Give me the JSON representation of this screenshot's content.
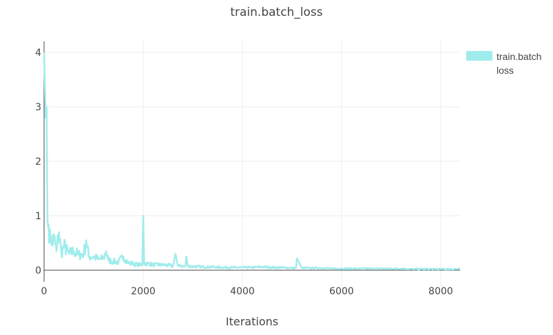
{
  "chart_data": {
    "type": "line",
    "title": "train.batch_loss",
    "xlabel": "Iterations",
    "ylabel": "",
    "xlim": [
      0,
      8390
    ],
    "ylim": [
      -0.15,
      4.2
    ],
    "x_ticks": [
      0,
      2000,
      4000,
      6000,
      8000
    ],
    "x_tick_labels": [
      "0",
      "2000",
      "4000",
      "6000",
      "8000"
    ],
    "y_ticks": [
      0,
      1,
      2,
      3,
      4
    ],
    "y_tick_labels": [
      "0",
      "1",
      "2",
      "3",
      "4"
    ],
    "grid": true,
    "legend_position": "right-top",
    "series": [
      {
        "name": "train.batch_loss",
        "color": "#a0ecec",
        "x": [
          0,
          10,
          30,
          50,
          60,
          80,
          100,
          120,
          150,
          200,
          250,
          300,
          350,
          400,
          500,
          600,
          700,
          800,
          850,
          900,
          1000,
          1100,
          1200,
          1250,
          1300,
          1400,
          1500,
          1600,
          1700,
          1800,
          1900,
          1980,
          2000,
          2020,
          2100,
          2200,
          2400,
          2600,
          2650,
          2700,
          2850,
          2870,
          2900,
          3000,
          3200,
          3400,
          3600,
          3800,
          4000,
          4200,
          4400,
          4600,
          4800,
          5000,
          5080,
          5100,
          5200,
          5400,
          5600,
          5800,
          6000,
          6200,
          6400,
          6600,
          6800,
          7000,
          7200,
          7400,
          7600,
          7800,
          8000,
          8200,
          8390
        ],
        "y": [
          4.0,
          3.7,
          2.8,
          3.0,
          2.0,
          0.8,
          0.5,
          0.75,
          0.45,
          0.6,
          0.35,
          0.7,
          0.3,
          0.45,
          0.3,
          0.35,
          0.28,
          0.3,
          0.55,
          0.25,
          0.25,
          0.2,
          0.22,
          0.35,
          0.18,
          0.16,
          0.15,
          0.25,
          0.13,
          0.12,
          0.1,
          0.1,
          1.0,
          0.12,
          0.12,
          0.1,
          0.1,
          0.08,
          0.3,
          0.08,
          0.07,
          0.25,
          0.07,
          0.07,
          0.06,
          0.06,
          0.05,
          0.05,
          0.05,
          0.05,
          0.06,
          0.05,
          0.05,
          0.04,
          0.04,
          0.22,
          0.04,
          0.04,
          0.04,
          0.03,
          0.03,
          0.03,
          0.03,
          0.03,
          0.03,
          0.03,
          0.03,
          0.02,
          0.02,
          0.02,
          0.02,
          0.02,
          0.02
        ]
      }
    ]
  },
  "legend": {
    "line1": "train.batch",
    "line2": "loss"
  }
}
